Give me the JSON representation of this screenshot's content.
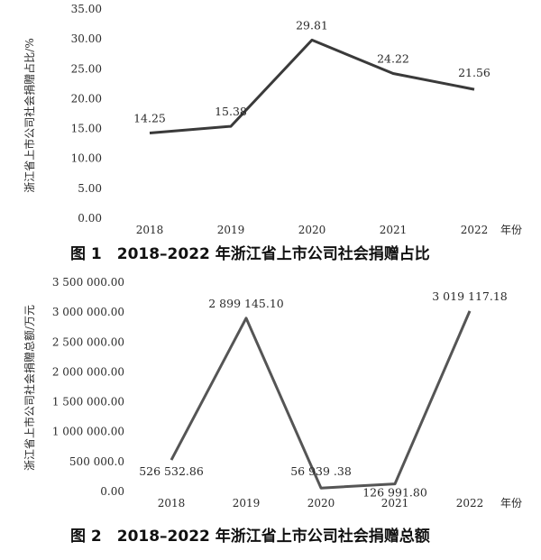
{
  "chart_data": [
    {
      "type": "line",
      "title": "图 1　2018–2022 年浙江省上市公司社会捐赠占比",
      "ylabel": "浙江省上市公司社会捐赠占比/%",
      "x_unit": "年份",
      "categories": [
        "2018",
        "2019",
        "2020",
        "2021",
        "2022"
      ],
      "values": [
        14.25,
        15.38,
        29.81,
        24.22,
        21.56
      ],
      "value_labels": [
        "14.25",
        "15.38",
        "29.81",
        "24.22",
        "21.56"
      ],
      "ylim": [
        0,
        35
      ],
      "yticks": [
        "0.00",
        "5.00",
        "10.00",
        "15.00",
        "20.00",
        "25.00",
        "30.00",
        "35.00"
      ],
      "line_color": "#3a3a3a",
      "grid": false
    },
    {
      "type": "line",
      "title": "图 2　2018–2022 年浙江省上市公司社会捐赠总额",
      "ylabel": "浙江省上市公司社会捐赠总额/万元",
      "x_unit": "年份",
      "categories": [
        "2018",
        "2019",
        "2020",
        "2021",
        "2022"
      ],
      "values": [
        526532.86,
        2899145.1,
        56939.38,
        126991.8,
        3019117.18
      ],
      "value_labels": [
        "526 532.86",
        "2 899 145.10",
        "56 939 .38",
        "126 991.80",
        "3 019 117.18"
      ],
      "ylim": [
        0,
        3500000
      ],
      "yticks": [
        "0.00",
        "500 000.0",
        "1 000 000.00",
        "1 500 000.00",
        "2 000 000.00",
        "2 500 000.00",
        "3 000 000.00",
        "3 500 000.00"
      ],
      "line_color": "#555555",
      "grid": false
    }
  ]
}
